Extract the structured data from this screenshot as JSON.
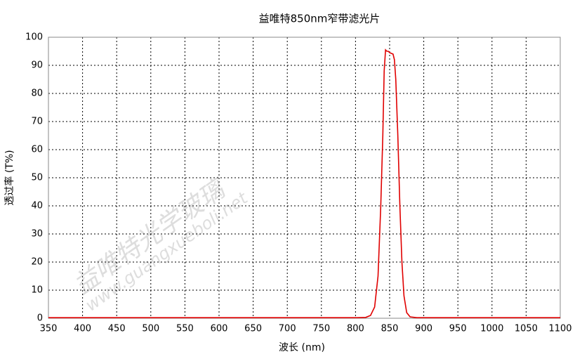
{
  "chart_data": {
    "type": "line",
    "title": "益唯特850nm窄带滤光片",
    "x_label": "波长 (nm)",
    "y_label": "透过率 (T%)",
    "watermarks": [
      "益唯特光学玻璃",
      "www.guangxueboli.net"
    ],
    "x": [
      350,
      800,
      815,
      822,
      828,
      833,
      837,
      840,
      842,
      844,
      846,
      848,
      850,
      855,
      857,
      859,
      862,
      865,
      868,
      871,
      875,
      880,
      890,
      1100
    ],
    "series": [
      {
        "name": "透过率",
        "color": "#e00000",
        "values": [
          0.2,
          0.2,
          0.3,
          1,
          4,
          15,
          40,
          65,
          88,
          95.5,
          95,
          95,
          94.5,
          94,
          92,
          85,
          65,
          40,
          20,
          8,
          2,
          0.5,
          0.2,
          0.2
        ]
      }
    ],
    "xlim": [
      350,
      1100
    ],
    "xticks": [
      350,
      400,
      450,
      500,
      550,
      600,
      650,
      700,
      750,
      800,
      850,
      900,
      950,
      1000,
      1050,
      1100
    ],
    "ylim": [
      0,
      100
    ],
    "yticks": [
      0,
      10,
      20,
      30,
      40,
      50,
      60,
      70,
      80,
      90,
      100
    ],
    "grid": true
  }
}
